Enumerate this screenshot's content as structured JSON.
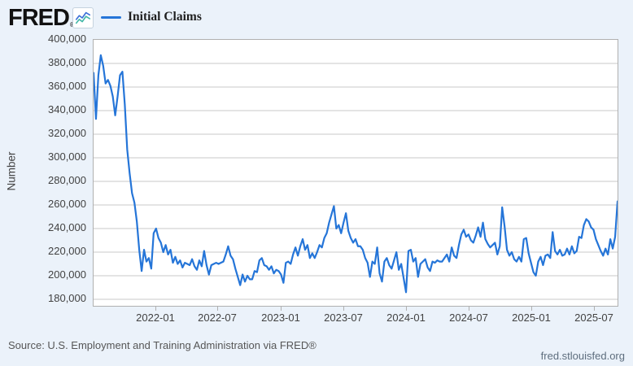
{
  "header": {
    "logo_text": "FRED",
    "logo_registered": "®",
    "legend_label": "Initial Claims"
  },
  "footer": {
    "source": "Source: U.S. Employment and Training Administration via FRED®",
    "link": "fred.stlouisfed.org"
  },
  "chart_data": {
    "type": "line",
    "series_name": "Initial Claims",
    "ylabel": "Number",
    "frequency": "weekly",
    "start_date": "2021-07-03",
    "end_date": "2025-09-06",
    "line_color": "#2575d8",
    "grid_color": "#c9c9c9",
    "ylim": [
      180000,
      400000
    ],
    "grid": true,
    "legend_position": "top-left",
    "y_tick_labels": [
      "400,000",
      "380,000",
      "360,000",
      "340,000",
      "320,000",
      "300,000",
      "280,000",
      "260,000",
      "240,000",
      "220,000",
      "200,000",
      "180,000"
    ],
    "x_ticks": [
      {
        "label": "2022-01",
        "week": 26
      },
      {
        "label": "2022-07",
        "week": 51.86
      },
      {
        "label": "2023-01",
        "week": 78.14
      },
      {
        "label": "2023-07",
        "week": 104.14
      },
      {
        "label": "2024-01",
        "week": 130.29
      },
      {
        "label": "2024-07",
        "week": 156.29
      },
      {
        "label": "2025-01",
        "week": 182.57
      },
      {
        "label": "2025-07",
        "week": 208.57
      }
    ],
    "total_weeks": 218,
    "values_unit": "thousands",
    "values_thousands": [
      372,
      333,
      370,
      387,
      378,
      363,
      366,
      361,
      352,
      336,
      352,
      370,
      373,
      345,
      307,
      287,
      270,
      262,
      246,
      222,
      204,
      222,
      212,
      215,
      206,
      236,
      240,
      232,
      228,
      220,
      226,
      218,
      222,
      211,
      216,
      210,
      213,
      207,
      211,
      210,
      209,
      214,
      208,
      205,
      213,
      208,
      221,
      209,
      201,
      209,
      210,
      211,
      210,
      211,
      212,
      218,
      225,
      217,
      214,
      206,
      199,
      192,
      201,
      195,
      200,
      197,
      197,
      204,
      203,
      213,
      215,
      209,
      208,
      205,
      208,
      202,
      205,
      204,
      201,
      194,
      211,
      212,
      210,
      218,
      224,
      217,
      225,
      231,
      222,
      226,
      215,
      219,
      215,
      220,
      226,
      224,
      232,
      236,
      245,
      252,
      259,
      240,
      243,
      236,
      245,
      253,
      238,
      232,
      228,
      231,
      225,
      225,
      222,
      215,
      211,
      199,
      212,
      210,
      224,
      202,
      195,
      212,
      215,
      209,
      206,
      213,
      220,
      205,
      210,
      198,
      186,
      221,
      222,
      212,
      215,
      199,
      210,
      212,
      214,
      207,
      204,
      212,
      211,
      213,
      212,
      212,
      215,
      218,
      212,
      224,
      217,
      215,
      226,
      235,
      239,
      233,
      235,
      230,
      228,
      234,
      241,
      233,
      245,
      231,
      227,
      224,
      226,
      228,
      218,
      225,
      258,
      242,
      222,
      217,
      220,
      214,
      212,
      216,
      212,
      231,
      232,
      219,
      211,
      203,
      200,
      212,
      216,
      209,
      217,
      218,
      215,
      237,
      221,
      218,
      222,
      217,
      218,
      223,
      218,
      225,
      219,
      221,
      233,
      232,
      243,
      248,
      246,
      241,
      239,
      231,
      226,
      221,
      217,
      223,
      218,
      231,
      223,
      233,
      263
    ]
  }
}
